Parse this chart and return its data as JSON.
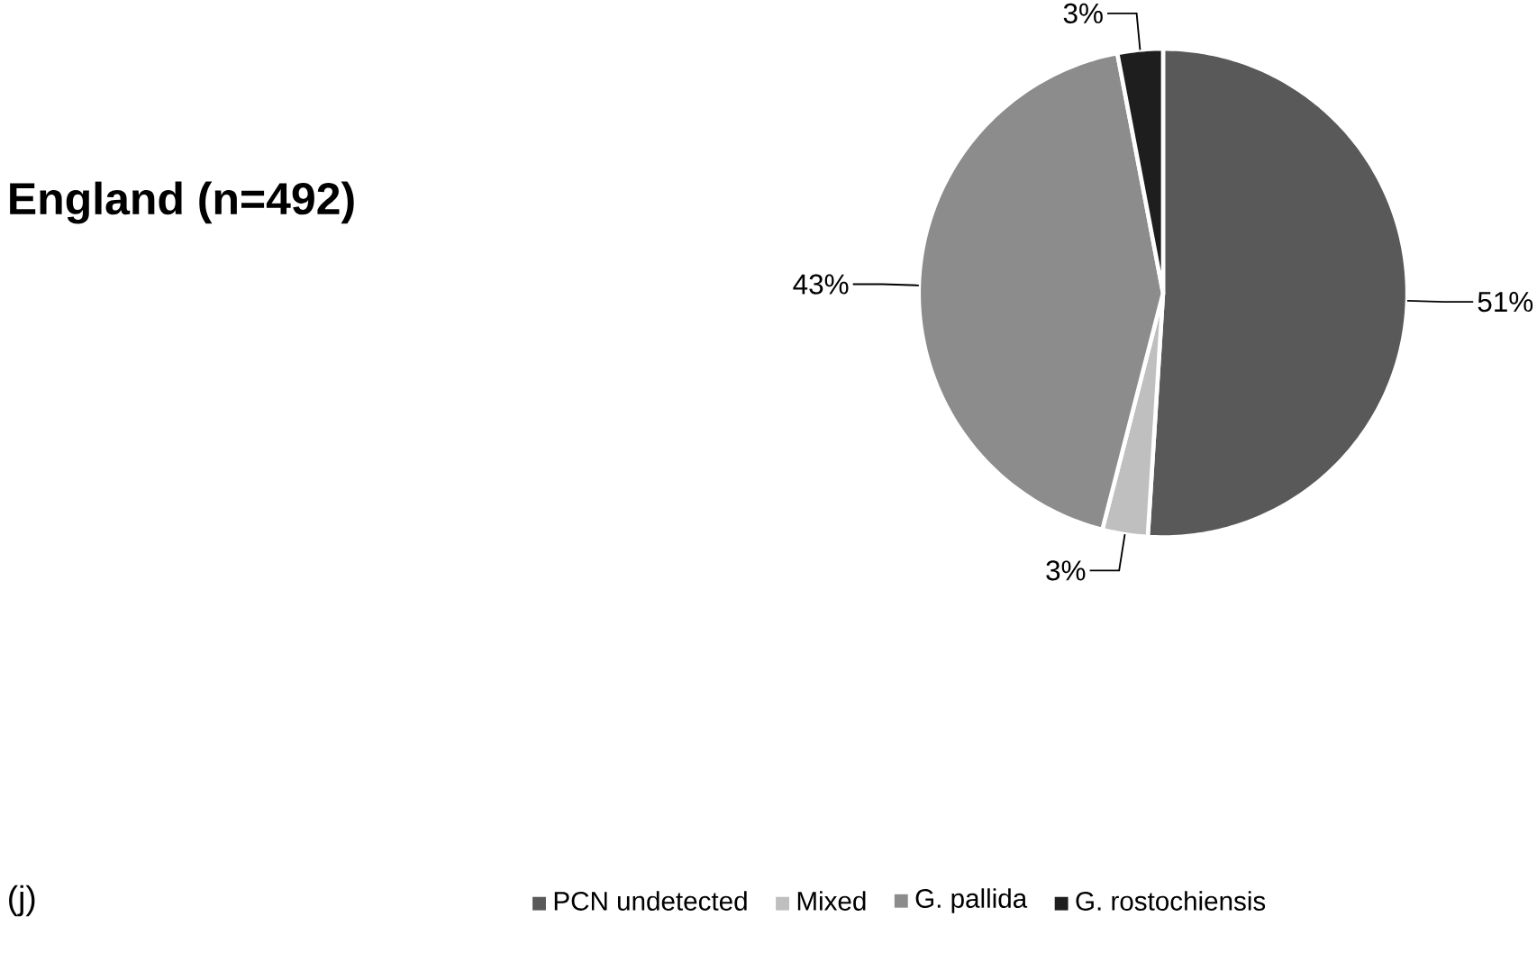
{
  "chart_data": {
    "type": "pie",
    "title": "England (n=492)",
    "categories": [
      "PCN undetected",
      "Mixed",
      "G. pallida",
      "G. rostochiensis"
    ],
    "values": [
      51,
      3,
      43,
      3
    ],
    "value_labels": [
      "51%",
      "3%",
      "43%",
      "3%"
    ],
    "colors": [
      "#595959",
      "#bfbfbf",
      "#8c8c8c",
      "#1e1e1e"
    ],
    "legend": "bottom",
    "annotations": [
      "(j)"
    ]
  }
}
